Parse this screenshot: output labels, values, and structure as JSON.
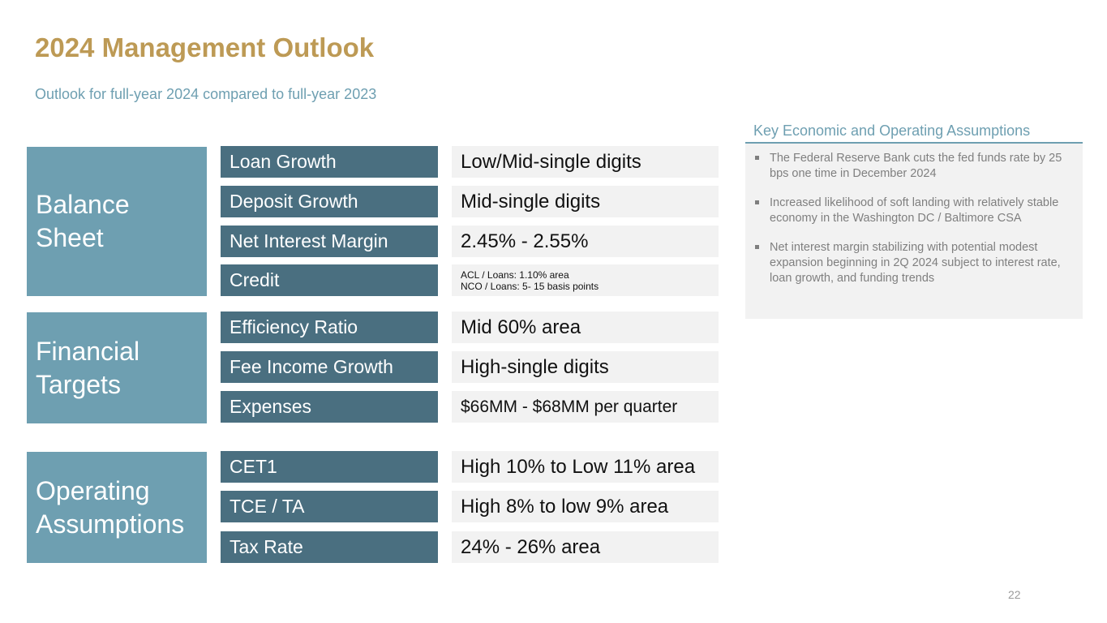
{
  "title": "2024 Management Outlook",
  "subtitle": "Outlook for full-year 2024 compared to full-year 2023",
  "groups": [
    {
      "name": "Balance Sheet",
      "rows": [
        {
          "label": "Loan Growth",
          "value": "Low/Mid-single digits"
        },
        {
          "label": "Deposit Growth",
          "value": "Mid-single digits"
        },
        {
          "label": "Net Interest Margin",
          "value": "2.45% - 2.55%"
        },
        {
          "label": "Credit",
          "value_lines": [
            "ACL / Loans: 1.10% area",
            "NCO / Loans: 5- 15 basis points"
          ]
        }
      ]
    },
    {
      "name": "Financial Targets",
      "rows": [
        {
          "label": "Efficiency Ratio",
          "value": "Mid 60% area"
        },
        {
          "label": "Fee Income Growth",
          "value": "High-single digits"
        },
        {
          "label": "Expenses",
          "value": "$66MM - $68MM per quarter"
        }
      ]
    },
    {
      "name": "Operating Assumptions",
      "rows": [
        {
          "label": "CET1",
          "value": "High 10% to Low 11% area"
        },
        {
          "label": "TCE / TA",
          "value": "High 8% to low 9% area"
        },
        {
          "label": "Tax Rate",
          "value": "24% - 26% area"
        }
      ]
    }
  ],
  "assumptions": {
    "title": "Key Economic and Operating Assumptions",
    "items": [
      "The Federal Reserve Bank cuts the fed funds rate by 25 bps one time in December 2024",
      "Increased likelihood of soft landing with relatively stable economy in the Washington DC / Baltimore CSA",
      "Net interest margin stabilizing with potential modest expansion beginning in 2Q 2024 subject to interest rate, loan growth, and funding trends"
    ]
  },
  "page_number": "22",
  "colors": {
    "title": "#BD9A55",
    "accent_light": "#6E9FB1",
    "accent_dark": "#4A6F80",
    "value_bg": "#F2F2F2"
  }
}
